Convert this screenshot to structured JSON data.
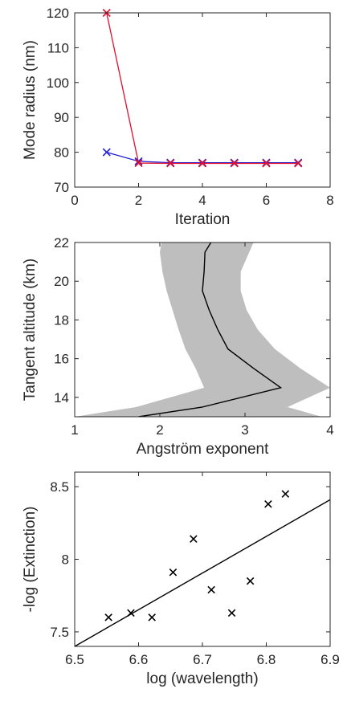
{
  "chart_data": [
    {
      "type": "line",
      "xlabel": "Iteration",
      "ylabel": "Mode radius (nm)",
      "xlim": [
        0,
        8
      ],
      "ylim": [
        70,
        120
      ],
      "xticks": [
        "0",
        "2",
        "4",
        "6",
        "8"
      ],
      "yticks": [
        "70",
        "80",
        "90",
        "100",
        "110",
        "120"
      ],
      "grid": false,
      "series": [
        {
          "color": "#1f1fd6",
          "marker": "x",
          "x": [
            1,
            2,
            3,
            4,
            5,
            6,
            7
          ],
          "y": [
            80,
            77.4,
            77.0,
            77.0,
            77.0,
            77.0,
            77.0
          ]
        },
        {
          "color": "#e0102e",
          "marker": "x",
          "x": [
            1,
            2,
            3,
            4,
            5,
            6,
            7
          ],
          "y": [
            120,
            76.9,
            76.8,
            76.8,
            76.8,
            76.8,
            76.8
          ]
        }
      ]
    },
    {
      "type": "area",
      "xlabel": "Angström exponent",
      "ylabel": "Tangent  altitude (km)",
      "xlim": [
        1,
        4
      ],
      "ylim": [
        13,
        22
      ],
      "xticks": [
        "1",
        "2",
        "3",
        "4"
      ],
      "yticks": [
        "14",
        "16",
        "18",
        "20",
        "22"
      ],
      "grid": false,
      "band_color": "#bebebe",
      "line_color": "#000000",
      "series": [
        {
          "altitude": [
            13.0,
            13.5,
            14.5,
            15.5,
            16.5,
            17.5,
            18.5,
            19.5,
            20.5,
            21.5,
            22.0
          ],
          "value": [
            1.75,
            2.5,
            3.42,
            3.1,
            2.8,
            2.68,
            2.58,
            2.5,
            2.52,
            2.53,
            2.6
          ]
        },
        {
          "altitude": [
            13.0,
            13.5,
            14.5,
            15.5,
            16.5,
            17.5,
            18.5,
            19.5,
            20.5,
            21.5,
            22.0
          ],
          "lower": [
            1.0,
            1.72,
            2.52,
            2.42,
            2.3,
            2.22,
            2.15,
            2.08,
            2.03,
            2.0,
            2.02
          ],
          "upper": [
            3.9,
            3.5,
            4.0,
            3.65,
            3.35,
            3.15,
            3.02,
            2.95,
            2.95,
            3.05,
            3.1
          ]
        }
      ]
    },
    {
      "type": "scatter",
      "xlabel": "log (wavelength)",
      "ylabel": "-log (Extinction)",
      "xlim": [
        6.5,
        6.9
      ],
      "ylim": [
        7.4,
        8.6
      ],
      "xticks": [
        "6.5",
        "6.6",
        "6.7",
        "6.8",
        "6.9"
      ],
      "yticks": [
        "7.5",
        "8",
        "8.5"
      ],
      "grid": false,
      "points": {
        "marker": "x",
        "x": [
          6.553,
          6.588,
          6.621,
          6.654,
          6.686,
          6.714,
          6.746,
          6.775,
          6.803,
          6.83
        ],
        "y": [
          7.6,
          7.63,
          7.6,
          7.91,
          8.14,
          7.79,
          7.63,
          7.85,
          8.38,
          8.45
        ]
      },
      "fit": {
        "x": [
          6.5,
          6.9
        ],
        "y": [
          7.4,
          8.41
        ]
      }
    }
  ]
}
